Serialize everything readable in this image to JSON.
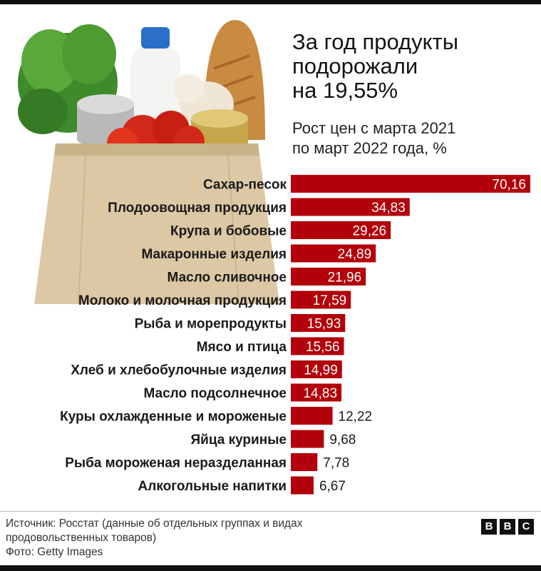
{
  "header": {
    "title_line1": "За год продукты",
    "title_line2": "подорожали",
    "title_line3": "на 19,55%",
    "subtitle_line1": "Рост цен с марта 2021",
    "subtitle_line2": "по март 2022 года, %"
  },
  "chart_data": {
    "type": "bar",
    "orientation": "horizontal",
    "categories": [
      "Сахар-песок",
      "Плодоовощная продукция",
      "Крупа и бобовые",
      "Макаронные изделия",
      "Масло сливочное",
      "Молоко и молочная продукция",
      "Рыба и морепродукты",
      "Мясо и птица",
      "Хлеб и хлебобулочные изделия",
      "Масло подсолнечное",
      "Куры охлажденные и мороженые",
      "Яйца куриные",
      "Рыба мороженая неразделанная",
      "Алкогольные напитки"
    ],
    "values": [
      70.16,
      34.83,
      29.26,
      24.89,
      21.96,
      17.59,
      15.93,
      15.56,
      14.99,
      14.83,
      12.22,
      9.68,
      7.78,
      6.67
    ],
    "value_labels": [
      "70,16",
      "34,83",
      "29,26",
      "24,89",
      "21,96",
      "17,59",
      "15,93",
      "15,56",
      "14,99",
      "14,83",
      "12,22",
      "9,68",
      "7,78",
      "6,67"
    ],
    "xlim": [
      0,
      71
    ],
    "bar_color": "#b2010a",
    "grid": false,
    "legend": "none"
  },
  "footer": {
    "source_line1": "Источник: Росстат (данные об отдельных группах и видах",
    "source_line2": "продовольственных товаров)",
    "photo_credit": "Фото: Getty Images",
    "logo": [
      "B",
      "B",
      "C"
    ]
  },
  "colors": {
    "accent": "#b2010a",
    "text": "#1a1a1a",
    "bag": "#dcc8a4"
  },
  "illustration": {
    "icon": "grocery-bag-icon"
  }
}
